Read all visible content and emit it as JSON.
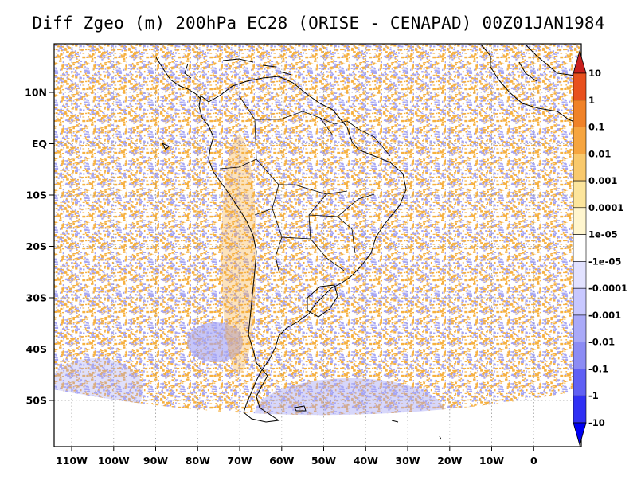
{
  "title": "Diff Zgeo (m) 200hPa EC28 (ORISE - CENAPAD) 00Z01JAN1984",
  "map": {
    "lat_labels": [
      "10N",
      "EQ",
      "10S",
      "20S",
      "30S",
      "40S",
      "50S"
    ],
    "lon_labels": [
      "110W",
      "100W",
      "90W",
      "80W",
      "70W",
      "60W",
      "50W",
      "40W",
      "30W",
      "20W",
      "10W",
      "0"
    ],
    "lat_values": [
      10,
      0,
      -10,
      -20,
      -30,
      -40,
      -50
    ],
    "lon_values": [
      -110,
      -100,
      -90,
      -80,
      -70,
      -60,
      -50,
      -40,
      -30,
      -20,
      -10,
      0
    ],
    "grid": "dotted",
    "colors": {
      "positive": "#f6b040",
      "negative": "#a6a6f4",
      "neutral": "#ffffff"
    }
  },
  "colorbar": {
    "labels": [
      "10",
      "1",
      "0.1",
      "0.01",
      "0.001",
      "0.0001",
      "1e-05",
      "-1e-05",
      "-0.0001",
      "-0.001",
      "-0.01",
      "-0.1",
      "-1",
      "-10"
    ],
    "colors": [
      "#c8201e",
      "#e8501e",
      "#f08228",
      "#f6a540",
      "#f9c96c",
      "#fce59c",
      "#fff6cf",
      "#ffffff",
      "#e2e2ff",
      "#c8c8ff",
      "#aaaaf8",
      "#8c8cf4",
      "#6060f4",
      "#3030f4",
      "#0000f4"
    ]
  }
}
